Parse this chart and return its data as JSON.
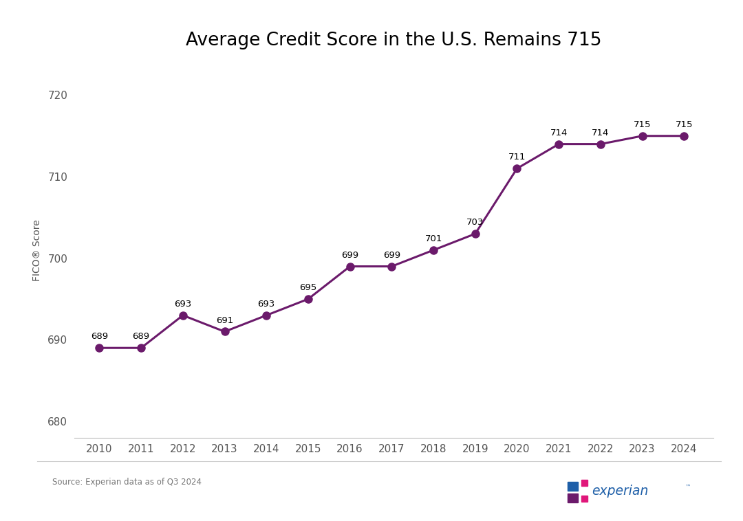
{
  "title": "Average Credit Score in the U.S. Remains 715",
  "years": [
    2010,
    2011,
    2012,
    2013,
    2014,
    2015,
    2016,
    2017,
    2018,
    2019,
    2020,
    2021,
    2022,
    2023,
    2024
  ],
  "scores": [
    689,
    689,
    693,
    691,
    693,
    695,
    699,
    699,
    701,
    703,
    711,
    714,
    714,
    715,
    715
  ],
  "ylabel": "FICO® Score",
  "ylim": [
    678,
    724
  ],
  "yticks": [
    680,
    690,
    700,
    710,
    720
  ],
  "line_color": "#6B1A6B",
  "marker_color": "#6B1A6B",
  "marker_size": 8,
  "line_width": 2.2,
  "label_fontsize": 9.5,
  "axis_tick_fontsize": 11,
  "ylabel_fontsize": 10,
  "title_fontsize": 19,
  "source_text": "Source: Experian data as of Q3 2024",
  "background_color": "#ffffff",
  "logo_purple": "#6B1A6B",
  "logo_blue": "#1E5FA8",
  "logo_pink": "#E0177A",
  "logo_text_color": "#1E5FA8"
}
